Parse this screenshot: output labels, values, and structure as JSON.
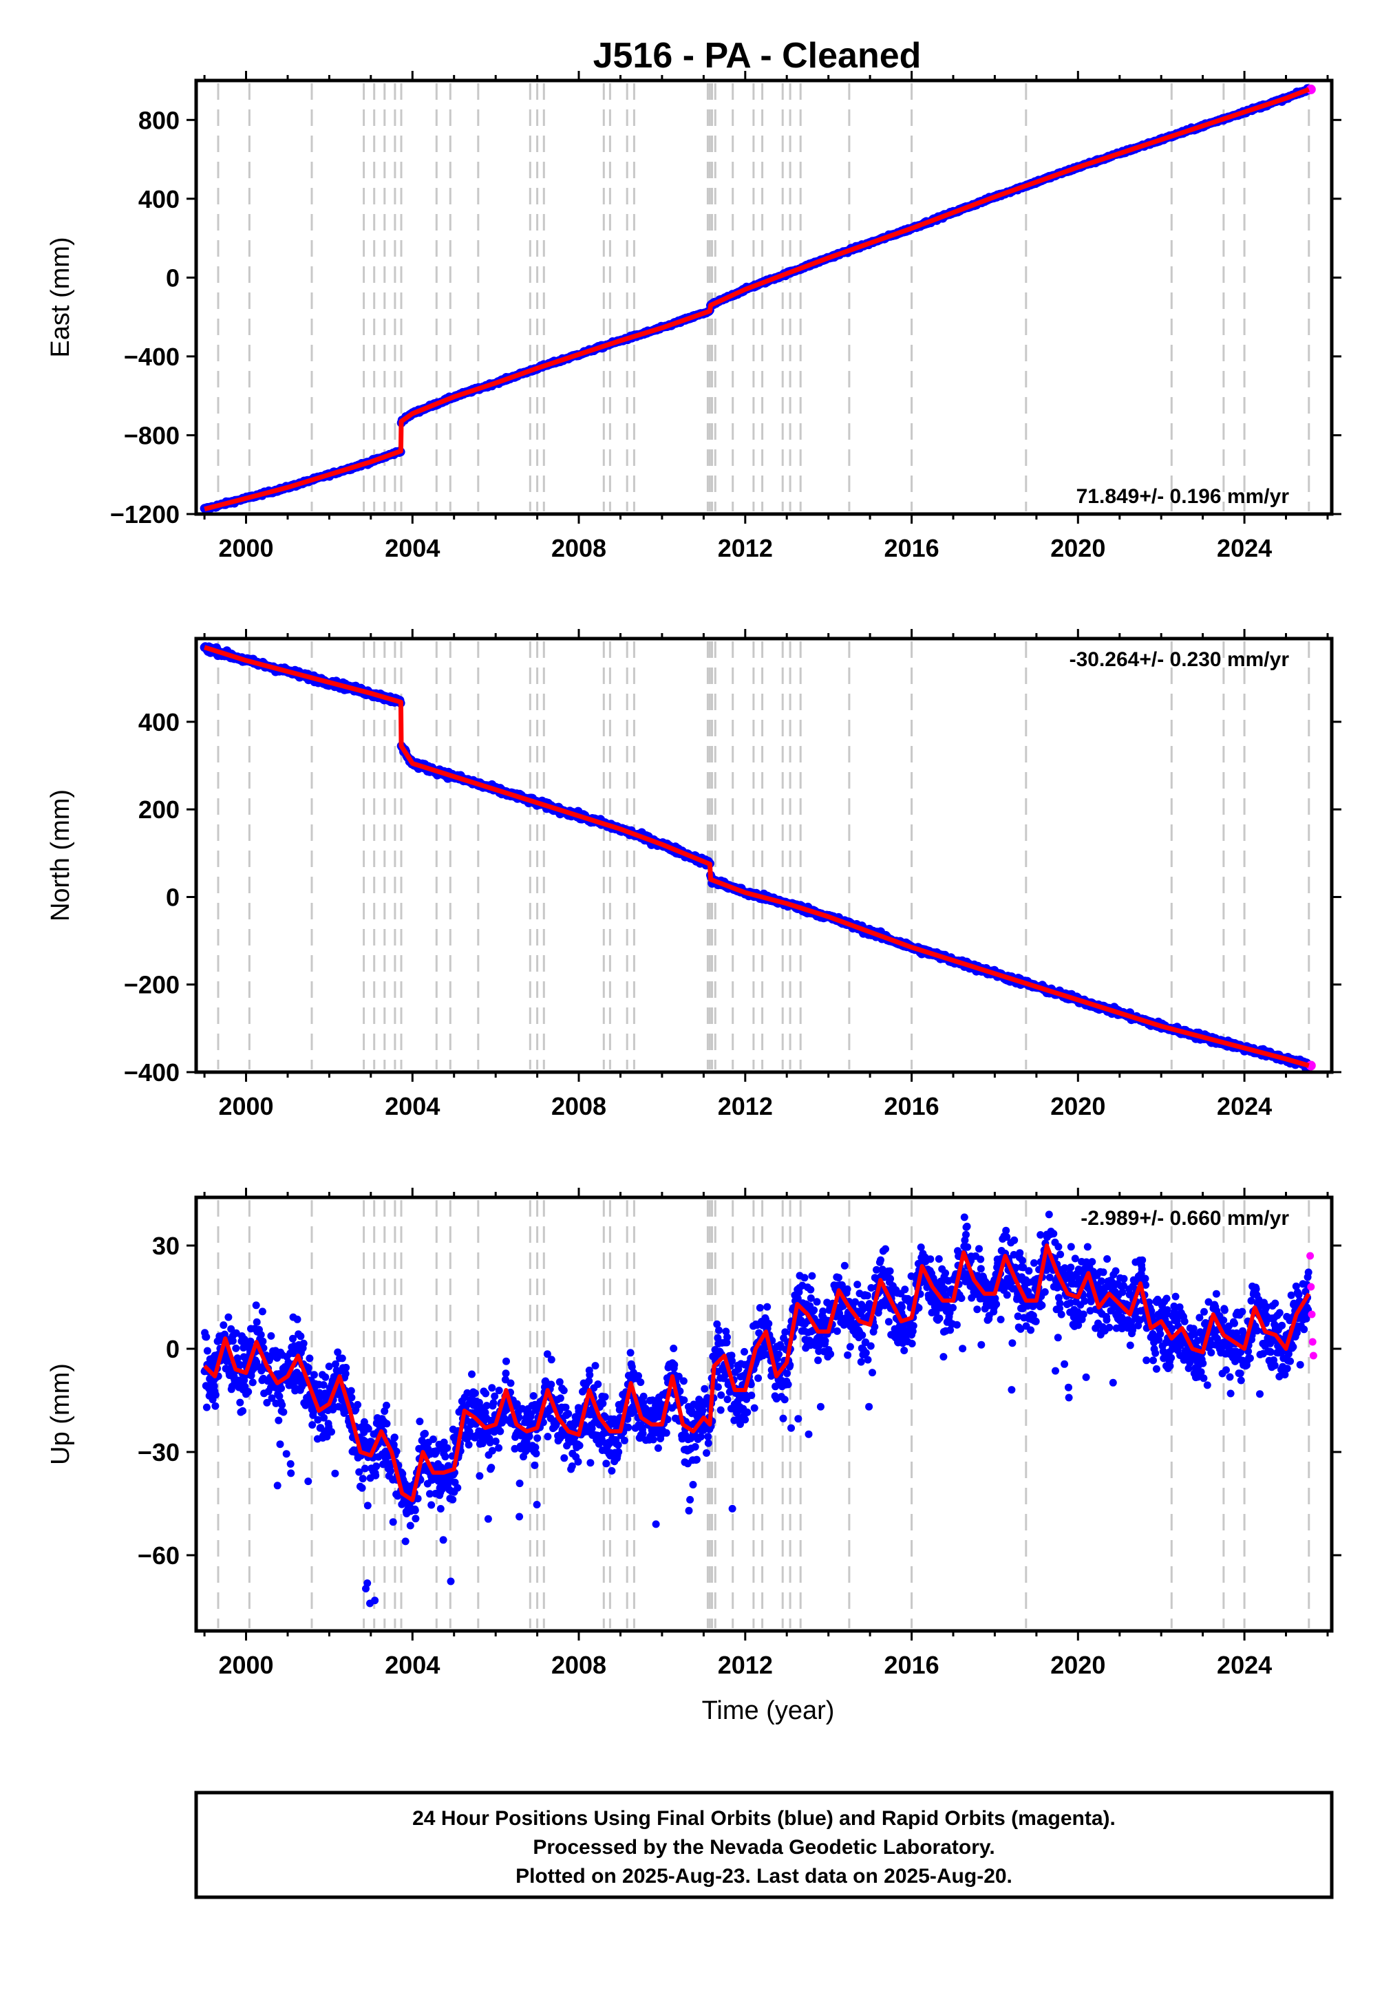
{
  "title": "J516  - PA - Cleaned",
  "colors": {
    "final": "#0000ff",
    "rapid": "#ff00ff",
    "model": "#ff0000",
    "events": "#c8c8c8"
  },
  "chart_data": [
    {
      "type": "scatter",
      "component": "east",
      "ylabel": "East (mm)",
      "xlabel": "",
      "xlim": [
        1998.8,
        2026.1
      ],
      "ylim": [
        -1200,
        1000
      ],
      "xticks": [
        2000,
        2004,
        2008,
        2012,
        2016,
        2020,
        2024
      ],
      "xtick_labels": [
        "2000",
        "2004",
        "2008",
        "2012",
        "2016",
        "2020",
        "2024"
      ],
      "yticks": [
        -1200,
        -800,
        -400,
        0,
        400,
        800
      ],
      "ytick_labels": [
        "−1200",
        "−800",
        "−400",
        "0",
        "400",
        "800"
      ],
      "rate_label": "71.849+/- 0.196 mm/yr",
      "rate_position": "bottom-right",
      "grid": false,
      "series": [
        {
          "x": [
            1999.0,
            2000.0,
            2001.0,
            2002.0,
            2003.0,
            2003.72,
            2003.73,
            2004.0,
            2005.0,
            2006.0,
            2007.0,
            2008.0,
            2009.0,
            2010.0,
            2011.15,
            2011.17,
            2012.0,
            2013.0,
            2014.0,
            2015.0,
            2016.0,
            2017.0,
            2018.0,
            2019.0,
            2020.0,
            2021.0,
            2022.0,
            2023.0,
            2024.0,
            2025.0,
            2025.55
          ],
          "y": [
            -1175,
            -1120,
            -1065,
            -1000,
            -935,
            -880,
            -730,
            -690,
            -605,
            -535,
            -460,
            -390,
            -320,
            -255,
            -170,
            -140,
            -60,
            20,
            100,
            175,
            250,
            330,
            410,
            485,
            560,
            630,
            700,
            770,
            840,
            910,
            955
          ]
        }
      ]
    },
    {
      "type": "scatter",
      "component": "north",
      "ylabel": "North (mm)",
      "xlabel": "",
      "xlim": [
        1998.8,
        2026.1
      ],
      "ylim": [
        -400,
        590
      ],
      "xticks": [
        2000,
        2004,
        2008,
        2012,
        2016,
        2020,
        2024
      ],
      "xtick_labels": [
        "2000",
        "2004",
        "2008",
        "2012",
        "2016",
        "2020",
        "2024"
      ],
      "yticks": [
        -400,
        -200,
        0,
        200,
        400
      ],
      "ytick_labels": [
        "−400",
        "−200",
        "0",
        "200",
        "400"
      ],
      "rate_label": "-30.264+/- 0.230 mm/yr",
      "rate_position": "top-right",
      "grid": false,
      "series": [
        {
          "x": [
            1999.0,
            2000.0,
            2001.0,
            2002.0,
            2003.0,
            2003.72,
            2003.73,
            2004.0,
            2005.0,
            2006.0,
            2007.0,
            2008.0,
            2009.0,
            2010.0,
            2011.15,
            2011.17,
            2012.0,
            2013.0,
            2014.0,
            2015.0,
            2016.0,
            2017.0,
            2018.0,
            2019.0,
            2020.0,
            2021.0,
            2022.0,
            2023.0,
            2024.0,
            2025.0,
            2025.55
          ],
          "y": [
            570,
            540,
            515,
            490,
            465,
            445,
            345,
            305,
            275,
            245,
            215,
            185,
            155,
            120,
            75,
            40,
            10,
            -15,
            -45,
            -80,
            -115,
            -145,
            -175,
            -205,
            -235,
            -265,
            -295,
            -320,
            -345,
            -370,
            -385
          ]
        }
      ]
    },
    {
      "type": "scatter",
      "component": "up",
      "ylabel": "Up (mm)",
      "xlabel": "Time (year)",
      "xlim": [
        1998.8,
        2026.1
      ],
      "ylim": [
        -82,
        44
      ],
      "xticks": [
        2000,
        2004,
        2008,
        2012,
        2016,
        2020,
        2024
      ],
      "xtick_labels": [
        "2000",
        "2004",
        "2008",
        "2012",
        "2016",
        "2020",
        "2024"
      ],
      "yticks": [
        -60,
        -30,
        0,
        30
      ],
      "ytick_labels": [
        "−60",
        "−30",
        "0",
        "30"
      ],
      "rate_label": "-2.989+/- 0.660 mm/yr",
      "rate_position": "top-right",
      "grid": false,
      "series": [
        {
          "x": [
            1999.0,
            1999.25,
            1999.5,
            1999.75,
            2000.0,
            2000.25,
            2000.5,
            2000.75,
            2001.0,
            2001.25,
            2001.5,
            2001.75,
            2002.0,
            2002.25,
            2002.5,
            2002.75,
            2003.0,
            2003.25,
            2003.5,
            2003.75,
            2004.0,
            2004.25,
            2004.5,
            2004.75,
            2005.0,
            2005.25,
            2005.5,
            2005.75,
            2006.0,
            2006.25,
            2006.5,
            2006.75,
            2007.0,
            2007.25,
            2007.5,
            2007.75,
            2008.0,
            2008.25,
            2008.5,
            2008.75,
            2009.0,
            2009.25,
            2009.5,
            2009.75,
            2010.0,
            2010.25,
            2010.5,
            2010.75,
            2011.0,
            2011.15,
            2011.25,
            2011.5,
            2011.75,
            2012.0,
            2012.25,
            2012.5,
            2012.75,
            2013.0,
            2013.25,
            2013.5,
            2013.75,
            2014.0,
            2014.25,
            2014.5,
            2014.75,
            2015.0,
            2015.25,
            2015.5,
            2015.75,
            2016.0,
            2016.25,
            2016.5,
            2016.75,
            2017.0,
            2017.25,
            2017.5,
            2017.75,
            2018.0,
            2018.25,
            2018.5,
            2018.75,
            2019.0,
            2019.25,
            2019.5,
            2019.75,
            2020.0,
            2020.25,
            2020.5,
            2020.75,
            2021.0,
            2021.25,
            2021.5,
            2021.75,
            2022.0,
            2022.25,
            2022.5,
            2022.75,
            2023.0,
            2023.25,
            2023.5,
            2023.75,
            2024.0,
            2024.25,
            2024.5,
            2024.75,
            2025.0,
            2025.25,
            2025.55
          ],
          "y": [
            -5,
            -8,
            3,
            -6,
            -7,
            2,
            -5,
            -10,
            -8,
            -2,
            -10,
            -18,
            -16,
            -8,
            -18,
            -30,
            -31,
            -24,
            -30,
            -42,
            -44,
            -30,
            -36,
            -36,
            -35,
            -18,
            -20,
            -23,
            -22,
            -12,
            -22,
            -24,
            -23,
            -12,
            -20,
            -24,
            -25,
            -12,
            -20,
            -24,
            -24,
            -10,
            -20,
            -22,
            -22,
            -8,
            -22,
            -24,
            -20,
            -22,
            -5,
            -2,
            -12,
            -12,
            0,
            5,
            -8,
            -4,
            13,
            10,
            5,
            5,
            17,
            12,
            8,
            7,
            20,
            14,
            8,
            9,
            24,
            18,
            14,
            14,
            28,
            20,
            16,
            16,
            27,
            20,
            14,
            14,
            30,
            22,
            16,
            15,
            22,
            12,
            16,
            13,
            10,
            19,
            6,
            8,
            3,
            6,
            0,
            -1,
            10,
            4,
            2,
            0,
            12,
            5,
            4,
            0,
            10,
            16
          ]
        }
      ],
      "rapid_series": {
        "x": [
          2025.58,
          2025.6,
          2025.62,
          2025.64,
          2025.66
        ],
        "y": [
          27,
          18,
          10,
          2,
          -2
        ]
      }
    }
  ],
  "event_lines": [
    1999.33,
    2000.08,
    2001.58,
    2002.83,
    2003.08,
    2003.33,
    2003.58,
    2003.73,
    2004.58,
    2004.91,
    2005.58,
    2006.83,
    2007.0,
    2007.16,
    2008.6,
    2008.75,
    2009.16,
    2009.33,
    2011.1,
    2011.15,
    2011.2,
    2011.28,
    2011.7,
    2012.2,
    2012.41,
    2012.9,
    2013.08,
    2013.33,
    2014.5,
    2016.0,
    2018.75,
    2022.25,
    2023.5,
    2024.0,
    2025.55
  ],
  "footer": {
    "line1": "24 Hour Positions Using Final Orbits (blue) and Rapid Orbits (magenta).",
    "line2": "Processed by the Nevada Geodetic Laboratory.",
    "line3": "Plotted on 2025-Aug-23. Last data on 2025-Aug-20."
  }
}
